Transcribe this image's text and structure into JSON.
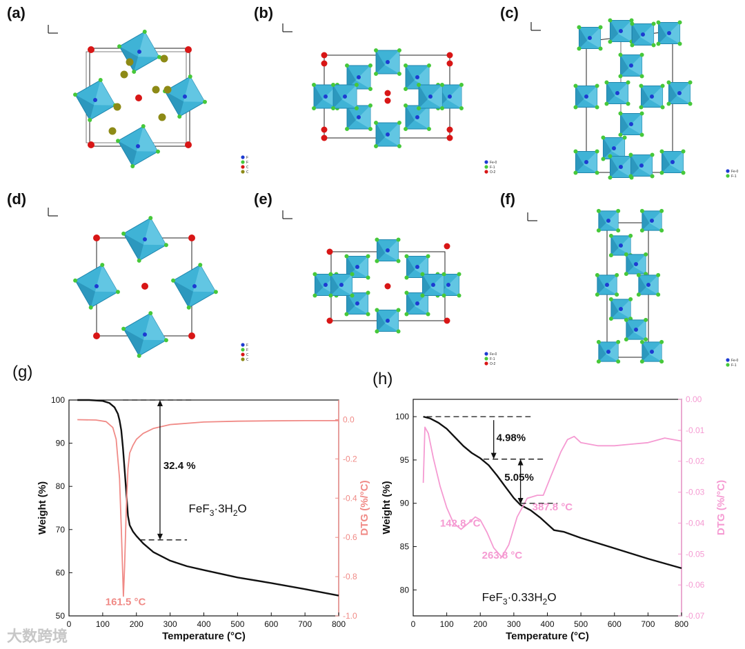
{
  "panels": {
    "a": "(a)",
    "b": "(b)",
    "c": "(c)",
    "d": "(d)",
    "e": "(e)",
    "f": "(f)",
    "g": "(g)",
    "h": "(h)"
  },
  "crystal_legends": {
    "a": [
      "Fe-0",
      "F-1",
      "O-2",
      "OF"
    ],
    "b": [
      "Fe-0",
      "F-1",
      "O-2"
    ],
    "c": [
      "Fe-0",
      "F-1"
    ],
    "d": [
      "Fe-0",
      "F-1",
      "O-2",
      "OF"
    ],
    "e": [
      "Fe-0",
      "F-1",
      "O-2"
    ],
    "f": [
      "Fe-0",
      "F-1"
    ]
  },
  "colors": {
    "octahedron": "#3fb3d6",
    "octahedron_dark": "#1f86ad",
    "fe_atom": "#1d3bd1",
    "f_atom": "#47c83a",
    "o_atom": "#d81616",
    "of_atom": "#8d8a16",
    "weight_curve": "#111111",
    "dtg_g": "#f08a86",
    "dtg_h": "#f59ad2"
  },
  "watermark": "大数跨境",
  "chart_data": [
    {
      "type": "line",
      "panel": "g",
      "xlabel": "Temperature (°C)",
      "ylabel": "Weight (%)",
      "y2label": "DTG (%/°C)",
      "xlim": [
        0,
        800
      ],
      "ylim": [
        50,
        100
      ],
      "y2lim": [
        -1.0,
        0.1
      ],
      "xticks": [
        "0",
        "100",
        "200",
        "300",
        "400",
        "500",
        "600",
        "700",
        "800"
      ],
      "yticks": [
        "50",
        "60",
        "70",
        "80",
        "90",
        "100"
      ],
      "y2ticks": [
        "-1.0",
        "-0.8",
        "-0.6",
        "-0.4",
        "-0.2",
        "0.0"
      ],
      "grid": false,
      "series": [
        {
          "axis": "left",
          "x": [
            25,
            60,
            100,
            120,
            135,
            145,
            150,
            155,
            160,
            165,
            170,
            175,
            180,
            190,
            200,
            220,
            250,
            300,
            350,
            400,
            500,
            600,
            700,
            800
          ],
          "y": [
            100,
            100,
            99.8,
            99.3,
            98.3,
            96.8,
            95.3,
            93.0,
            89.0,
            84.0,
            78.5,
            73.2,
            71.0,
            69.5,
            68.5,
            66.8,
            64.8,
            62.8,
            61.5,
            60.6,
            58.9,
            57.6,
            56.2,
            54.7
          ]
        },
        {
          "axis": "right",
          "x": [
            25,
            80,
            110,
            130,
            140,
            150,
            155,
            160,
            161.5,
            165,
            170,
            175,
            180,
            190,
            200,
            220,
            250,
            300,
            400,
            500,
            600,
            700,
            800
          ],
          "y": [
            0.0,
            -0.002,
            -0.01,
            -0.04,
            -0.1,
            -0.3,
            -0.55,
            -0.82,
            -0.9,
            -0.75,
            -0.45,
            -0.25,
            -0.17,
            -0.13,
            -0.1,
            -0.07,
            -0.045,
            -0.025,
            -0.012,
            -0.008,
            -0.006,
            -0.005,
            -0.005
          ]
        }
      ],
      "annotations": {
        "mass_loss": "32.4 %",
        "peak": "161.5 °C",
        "formula_main": "FeF",
        "formula_sub1": "3",
        "formula_mid": "·3H",
        "formula_sub2": "2",
        "formula_end": "O"
      }
    },
    {
      "type": "line",
      "panel": "h",
      "xlabel": "Temperature (°C)",
      "ylabel": "Weight (%)",
      "y2label": "DTG (%/°C)",
      "xlim": [
        0,
        800
      ],
      "ylim": [
        77,
        102
      ],
      "y2lim": [
        -0.07,
        0.0
      ],
      "xticks": [
        "0",
        "100",
        "200",
        "300",
        "400",
        "500",
        "600",
        "700",
        "800"
      ],
      "yticks": [
        "80",
        "85",
        "90",
        "95",
        "100"
      ],
      "y2ticks": [
        "0.00",
        "-0.01",
        "-0.02",
        "-0.03",
        "-0.04",
        "-0.05",
        "-0.06",
        "-0.07"
      ],
      "grid": false,
      "series": [
        {
          "axis": "left",
          "x": [
            30,
            50,
            75,
            100,
            125,
            150,
            175,
            200,
            225,
            250,
            275,
            300,
            320,
            350,
            380,
            420,
            450,
            500,
            600,
            700,
            800
          ],
          "y": [
            100,
            99.8,
            99.3,
            98.6,
            97.6,
            96.6,
            95.8,
            95.2,
            94.4,
            93.2,
            91.9,
            90.6,
            89.8,
            89.2,
            88.3,
            86.9,
            86.7,
            86.0,
            84.8,
            83.6,
            82.5
          ]
        },
        {
          "axis": "right",
          "x": [
            30,
            35,
            45,
            60,
            80,
            100,
            120,
            142.8,
            165,
            185,
            200,
            220,
            240,
            263.8,
            285,
            310,
            340,
            370,
            387.8,
            410,
            440,
            460,
            480,
            500,
            550,
            600,
            650,
            700,
            750,
            800
          ],
          "y": [
            -0.027,
            -0.009,
            -0.011,
            -0.019,
            -0.028,
            -0.035,
            -0.04,
            -0.042,
            -0.04,
            -0.038,
            -0.039,
            -0.043,
            -0.048,
            -0.051,
            -0.047,
            -0.038,
            -0.032,
            -0.031,
            -0.031,
            -0.025,
            -0.017,
            -0.013,
            -0.012,
            -0.014,
            -0.015,
            -0.015,
            -0.0145,
            -0.014,
            -0.0125,
            -0.0135
          ]
        }
      ],
      "annotations": {
        "loss1": "4.98%",
        "loss2": "5.05%",
        "peak1": "142.8 °C",
        "peak2": "263.8 °C",
        "peak3": "387.8 °C",
        "formula_main": "FeF",
        "formula_sub1": "3",
        "formula_mid": "·0.33H",
        "formula_sub2": "2",
        "formula_end": "O"
      }
    }
  ]
}
